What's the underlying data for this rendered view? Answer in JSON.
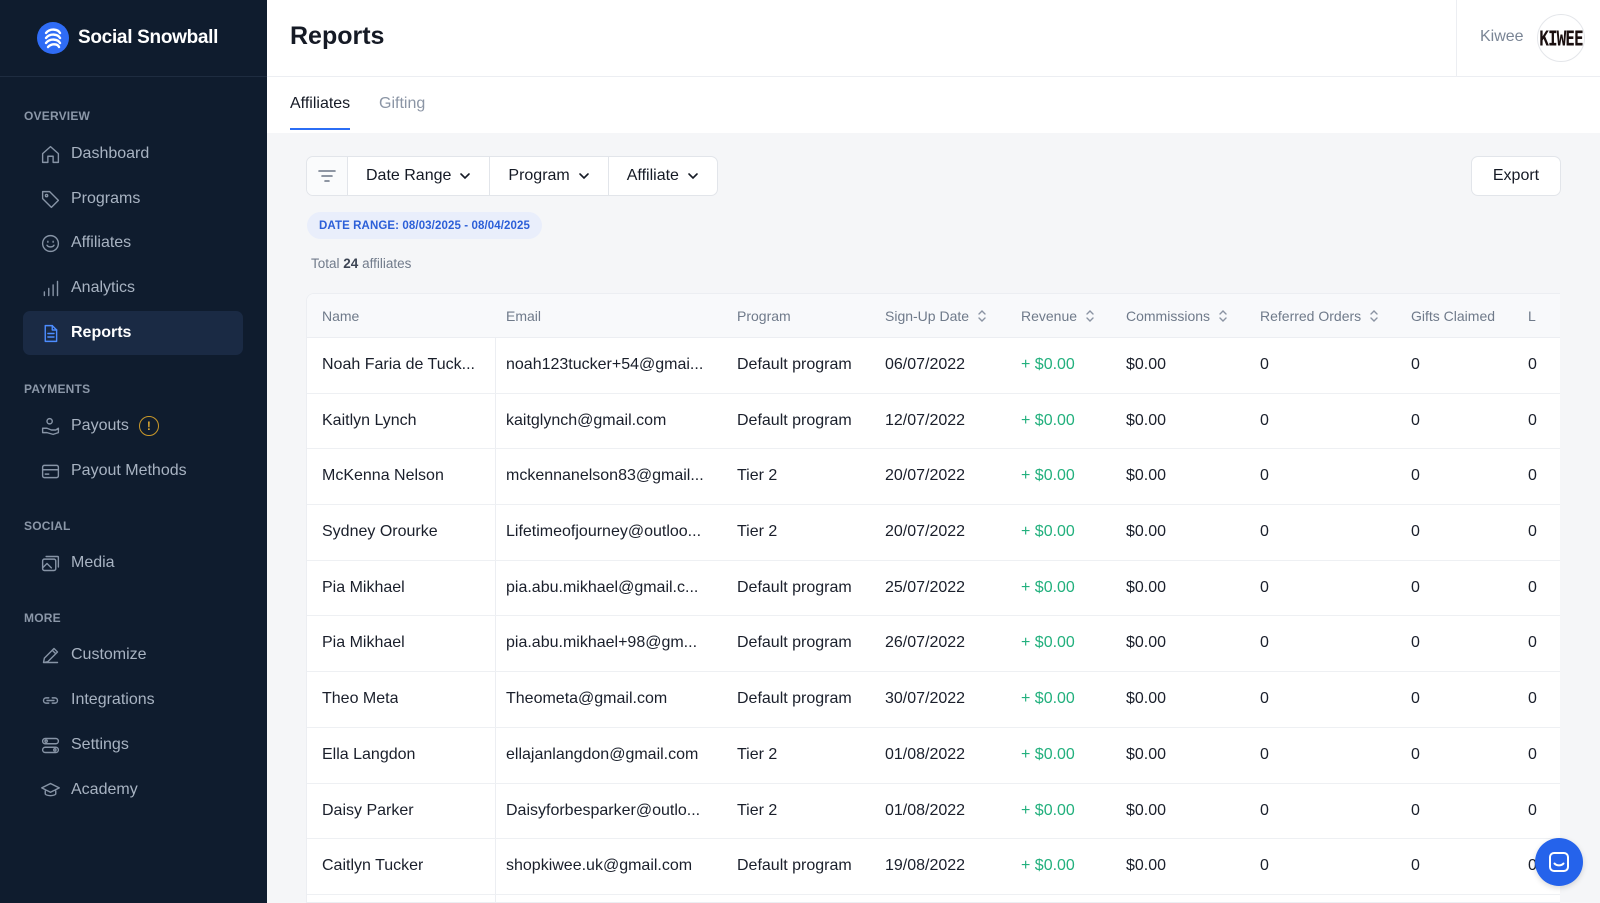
{
  "brand": {
    "name": "Social Snowball"
  },
  "sidebar": {
    "sections": [
      {
        "label": "OVERVIEW"
      },
      {
        "label": "PAYMENTS"
      },
      {
        "label": "SOCIAL"
      },
      {
        "label": "MORE"
      }
    ],
    "items": [
      {
        "label": "Dashboard",
        "icon": "home-icon"
      },
      {
        "label": "Programs",
        "icon": "tag-icon"
      },
      {
        "label": "Affiliates",
        "icon": "smiley-icon"
      },
      {
        "label": "Analytics",
        "icon": "bar-chart-icon"
      },
      {
        "label": "Reports",
        "icon": "document-icon",
        "active": true
      },
      {
        "label": "Payouts",
        "icon": "hand-coins-icon",
        "badge": "!"
      },
      {
        "label": "Payout Methods",
        "icon": "card-icon"
      },
      {
        "label": "Media",
        "icon": "images-icon"
      },
      {
        "label": "Customize",
        "icon": "pen-icon"
      },
      {
        "label": "Integrations",
        "icon": "link-icon"
      },
      {
        "label": "Settings",
        "icon": "settings-icon"
      },
      {
        "label": "Academy",
        "icon": "graduation-cap-icon"
      }
    ]
  },
  "header": {
    "title": "Reports",
    "account_name": "Kiwee",
    "avatar_text": "KIWEE"
  },
  "tabs": [
    {
      "label": "Affiliates",
      "active": true
    },
    {
      "label": "Gifting",
      "active": false
    }
  ],
  "filters": {
    "date_range": "Date Range",
    "program": "Program",
    "affiliate": "Affiliate",
    "export": "Export"
  },
  "range_pill": "DATE RANGE: 08/03/2025 - 08/04/2025",
  "summary": {
    "prefix": "Total",
    "count": "24",
    "suffix": "affiliates"
  },
  "table": {
    "columns": [
      "Name",
      "Email",
      "Program",
      "Sign-Up Date",
      "Revenue",
      "Commissions",
      "Referred Orders",
      "Gifts Claimed",
      "L"
    ],
    "rows": [
      [
        "Noah Faria de Tuck...",
        "noah123tucker+54@gmai...",
        "Default program",
        "06/07/2022",
        "+ $0.00",
        "$0.00",
        "0",
        "0",
        "0"
      ],
      [
        "Kaitlyn Lynch",
        "kaitglynch@gmail.com",
        "Default program",
        "12/07/2022",
        "+ $0.00",
        "$0.00",
        "0",
        "0",
        "0"
      ],
      [
        "McKenna Nelson",
        "mckennanelson83@gmail...",
        "Tier 2",
        "20/07/2022",
        "+ $0.00",
        "$0.00",
        "0",
        "0",
        "0"
      ],
      [
        "Sydney Orourke",
        "Lifetimeofjourney@outloo...",
        "Tier 2",
        "20/07/2022",
        "+ $0.00",
        "$0.00",
        "0",
        "0",
        "0"
      ],
      [
        "Pia Mikhael",
        "pia.abu.mikhael@gmail.c...",
        "Default program",
        "25/07/2022",
        "+ $0.00",
        "$0.00",
        "0",
        "0",
        "0"
      ],
      [
        "Pia Mikhael",
        "pia.abu.mikhael+98@gm...",
        "Default program",
        "26/07/2022",
        "+ $0.00",
        "$0.00",
        "0",
        "0",
        "0"
      ],
      [
        "Theo Meta",
        "Theometa@gmail.com",
        "Default program",
        "30/07/2022",
        "+ $0.00",
        "$0.00",
        "0",
        "0",
        "0"
      ],
      [
        "Ella Langdon",
        "ellajanlangdon@gmail.com",
        "Tier 2",
        "01/08/2022",
        "+ $0.00",
        "$0.00",
        "0",
        "0",
        "0"
      ],
      [
        "Daisy Parker",
        "Daisyforbesparker@outlo...",
        "Tier 2",
        "01/08/2022",
        "+ $0.00",
        "$0.00",
        "0",
        "0",
        "0"
      ],
      [
        "Caitlyn Tucker",
        "shopkiwee.uk@gmail.com",
        "Default program",
        "19/08/2022",
        "+ $0.00",
        "$0.00",
        "0",
        "0",
        "0"
      ]
    ]
  },
  "colors": {
    "sidebar_bg": "#0f1c2e",
    "accent": "#2b6df5",
    "revenue_green": "#22b07d"
  }
}
